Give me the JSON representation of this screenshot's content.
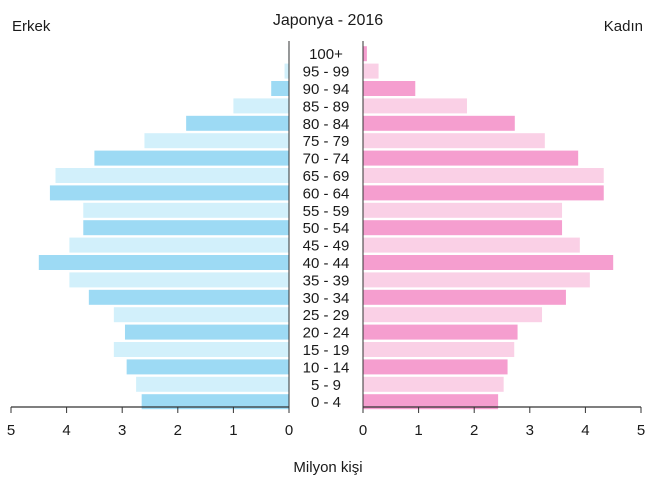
{
  "chart_data": {
    "type": "bar",
    "title": "Japonya - 2016",
    "left_label": "Erkek",
    "right_label": "Kadın",
    "xlabel": "Milyon kişi",
    "xlim": [
      0,
      5
    ],
    "ticks": [
      "5",
      "4",
      "3",
      "2",
      "1",
      "0",
      "0",
      "1",
      "2",
      "3",
      "4",
      "5"
    ],
    "categories": [
      "100+",
      "95 - 99",
      "90 - 94",
      "85 - 89",
      "80 - 84",
      "75 - 79",
      "70 - 74",
      "65 - 69",
      "60 - 64",
      "55 - 59",
      "50 - 54",
      "45 - 49",
      "40 - 44",
      "35 - 39",
      "30 - 34",
      "25 - 29",
      "20 - 24",
      "15 - 19",
      "10 - 14",
      "5 - 9",
      "0 - 4"
    ],
    "series": [
      {
        "name": "Erkek",
        "values": [
          0.01,
          0.08,
          0.32,
          1.0,
          1.85,
          2.6,
          3.5,
          4.2,
          4.3,
          3.7,
          3.7,
          3.95,
          4.5,
          3.95,
          3.6,
          3.15,
          2.95,
          3.15,
          2.92,
          2.75,
          2.65
        ]
      },
      {
        "name": "Kadın",
        "values": [
          0.07,
          0.28,
          0.94,
          1.87,
          2.73,
          3.27,
          3.87,
          4.33,
          4.33,
          3.58,
          3.58,
          3.9,
          4.5,
          4.08,
          3.65,
          3.22,
          2.78,
          2.72,
          2.6,
          2.53,
          2.43
        ]
      }
    ],
    "colors": {
      "male_dark": "#9ddaf4",
      "male_light": "#d2f0fb",
      "female_dark": "#f59ecf",
      "female_light": "#fad0e6",
      "axis": "#333333"
    },
    "grid": false
  }
}
